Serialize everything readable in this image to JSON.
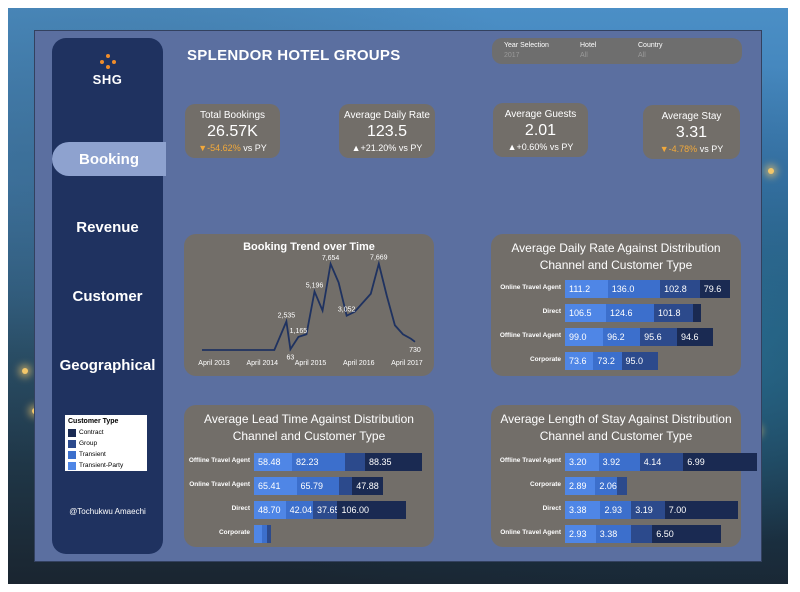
{
  "header": {
    "title": "SPLENDOR HOTEL GROUPS"
  },
  "logo": {
    "text": "SHG"
  },
  "nav": {
    "items": [
      "Booking",
      "Revenue",
      "Customer",
      "Geographical"
    ]
  },
  "filters": [
    {
      "label": "Year Selection",
      "value": "2017"
    },
    {
      "label": "Hotel",
      "value": "All"
    },
    {
      "label": "Country",
      "value": "All"
    }
  ],
  "kpis": [
    {
      "label": "Total Bookings",
      "value": "26.57K",
      "change": "▼-54.62%",
      "suffix": "vs PY",
      "direction": "down"
    },
    {
      "label": "Average Daily Rate",
      "value": "123.5",
      "change": "▲+21.20%",
      "suffix": "vs PY",
      "direction": "up"
    },
    {
      "label": "Average Guests",
      "value": "2.01",
      "change": "▲+0.60%",
      "suffix": "vs PY",
      "direction": "up"
    },
    {
      "label": "Average Stay",
      "value": "3.31",
      "change": "▼-4.78%",
      "suffix": "vs PY",
      "direction": "down"
    }
  ],
  "legend": {
    "title": "Customer Type",
    "items": [
      {
        "name": "Contract",
        "color": "#1a2a52"
      },
      {
        "name": "Group",
        "color": "#2c4a8c"
      },
      {
        "name": "Transient",
        "color": "#3c6fcc"
      },
      {
        "name": "Transient-Party",
        "color": "#4f86e6"
      }
    ]
  },
  "credit": "@Tochukwu Amaechi",
  "colors": {
    "transient_party": "#4f86e6",
    "transient": "#3c6fcc",
    "group": "#2c4a8c",
    "contract": "#1a2a52"
  },
  "chart_data": [
    {
      "type": "line",
      "title": "Booking Trend over Time",
      "x_tick_labels": [
        "April 2013",
        "April 2014",
        "April 2015",
        "April 2016",
        "April 2017"
      ],
      "x": [
        "2013-01",
        "2013-07",
        "2014-01",
        "2014-04",
        "2014-07",
        "2014-10",
        "2014-11",
        "2015-01",
        "2015-03",
        "2015-05",
        "2015-07",
        "2015-09",
        "2015-11",
        "2016-01",
        "2016-03",
        "2016-05",
        "2016-07",
        "2016-09",
        "2016-11",
        "2017-01",
        "2017-03",
        "2017-05",
        "2017-06"
      ],
      "values": [
        0,
        0,
        0,
        0,
        0,
        2535,
        63,
        1165,
        1400,
        5196,
        3500,
        7654,
        6000,
        3052,
        3400,
        4200,
        5000,
        7669,
        4800,
        2200,
        1400,
        1000,
        730
      ],
      "data_labels": [
        {
          "x": "2014-10",
          "label": "2,535"
        },
        {
          "x": "2014-11",
          "label": "63"
        },
        {
          "x": "2015-01",
          "label": "1,165"
        },
        {
          "x": "2015-05",
          "label": "5,196"
        },
        {
          "x": "2015-09",
          "label": "7,654"
        },
        {
          "x": "2016-01",
          "label": "3,052"
        },
        {
          "x": "2016-09",
          "label": "7,669"
        },
        {
          "x": "2017-06",
          "label": "730"
        }
      ],
      "ylim": [
        0,
        8000
      ],
      "color": "#1f3260"
    },
    {
      "type": "bar",
      "orientation": "horizontal-stacked",
      "title": "Average Daily Rate Against Distribution Channel and Customer Type",
      "categories": [
        "Online Travel Agent",
        "Direct",
        "Offline Travel Agent",
        "Corporate"
      ],
      "series": [
        {
          "name": "Transient-Party",
          "values": [
            111.2,
            106.5,
            99.0,
            73.6
          ]
        },
        {
          "name": "Transient",
          "values": [
            136.0,
            124.6,
            96.2,
            73.2
          ]
        },
        {
          "name": "Group",
          "values": [
            102.8,
            101.8,
            95.6,
            95.0
          ]
        },
        {
          "name": "Contract",
          "values": [
            79.6,
            20.0,
            94.6,
            0
          ]
        }
      ],
      "labels": [
        [
          "111.2",
          "136.0",
          "102.8",
          "79.6"
        ],
        [
          "106.5",
          "124.6",
          "101.8",
          ""
        ],
        [
          "99.0",
          "96.2",
          "95.6",
          "94.6"
        ],
        [
          "73.6",
          "73.2",
          "95.0",
          ""
        ]
      ]
    },
    {
      "type": "bar",
      "orientation": "horizontal-stacked",
      "title": "Average Lead Time Against Distribution Channel and Customer Type",
      "categories": [
        "Offline Travel Agent",
        "Online Travel Agent",
        "Direct",
        "Corporate"
      ],
      "series": [
        {
          "name": "Transient-Party",
          "values": [
            58.48,
            65.41,
            48.7,
            12
          ]
        },
        {
          "name": "Transient",
          "values": [
            82.23,
            65.79,
            42.04,
            8
          ]
        },
        {
          "name": "Group",
          "values": [
            30,
            20,
            37.65,
            5
          ]
        },
        {
          "name": "Contract",
          "values": [
            88.35,
            47.88,
            106.0,
            0
          ]
        }
      ],
      "labels": [
        [
          "58.48",
          "82.23",
          "",
          "88.35"
        ],
        [
          "65.41",
          "65.79",
          "",
          "47.88"
        ],
        [
          "48.70",
          "42.04",
          "37.65",
          "106.00"
        ],
        [
          "",
          "",
          "",
          ""
        ]
      ]
    },
    {
      "type": "bar",
      "orientation": "horizontal-stacked",
      "title": "Average Length of Stay Against Distribution Channel and Customer Type",
      "categories": [
        "Offline Travel Agent",
        "Corporate",
        "Direct",
        "Online Travel Agent"
      ],
      "series": [
        {
          "name": "Transient-Party",
          "values": [
            3.2,
            2.89,
            3.38,
            2.93
          ]
        },
        {
          "name": "Transient",
          "values": [
            3.92,
            2.06,
            2.93,
            3.38
          ]
        },
        {
          "name": "Group",
          "values": [
            4.14,
            1.0,
            3.19,
            2.0
          ]
        },
        {
          "name": "Contract",
          "values": [
            6.99,
            0,
            7.0,
            6.5
          ]
        }
      ],
      "labels": [
        [
          "3.20",
          "3.92",
          "4.14",
          "6.99"
        ],
        [
          "2.89",
          "2.06",
          "",
          ""
        ],
        [
          "3.38",
          "2.93",
          "3.19",
          "7.00"
        ],
        [
          "2.93",
          "3.38",
          "",
          "6.50"
        ]
      ]
    }
  ]
}
